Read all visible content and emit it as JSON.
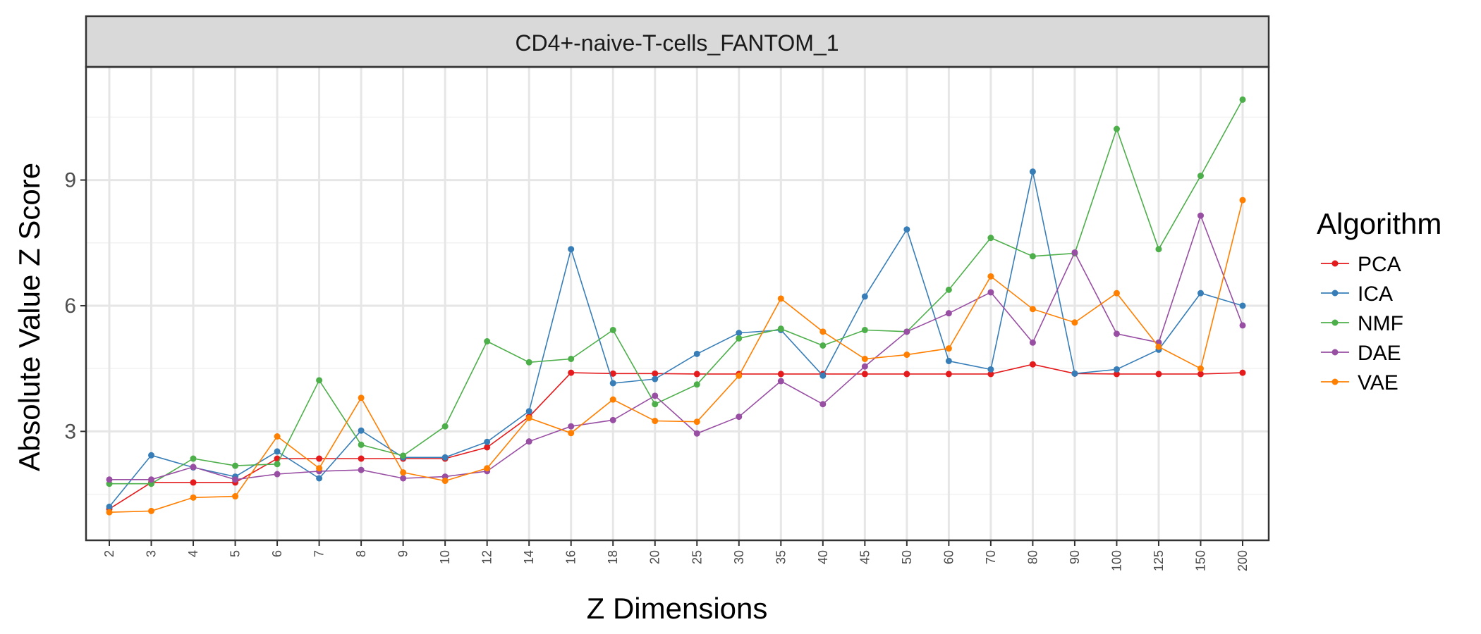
{
  "chart_data": {
    "type": "line",
    "facet_title": "CD4+-naive-T-cells_FANTOM_1",
    "xlabel": "Z Dimensions",
    "ylabel": "Absolute Value Z Score",
    "legend_title": "Algorithm",
    "legend_position": "right",
    "grid": true,
    "ylim": [
      0.4,
      11.7
    ],
    "yticks": [
      3,
      6,
      9
    ],
    "categories": [
      "2",
      "3",
      "4",
      "5",
      "6",
      "7",
      "8",
      "9",
      "10",
      "12",
      "14",
      "16",
      "18",
      "20",
      "25",
      "30",
      "35",
      "40",
      "45",
      "50",
      "60",
      "70",
      "80",
      "90",
      "100",
      "125",
      "150",
      "200"
    ],
    "series": [
      {
        "name": "PCA",
        "color": "#E41A1C",
        "values": [
          1.15,
          1.78,
          1.78,
          1.78,
          2.35,
          2.35,
          2.35,
          2.35,
          2.35,
          2.62,
          3.35,
          4.4,
          4.38,
          4.38,
          4.37,
          4.37,
          4.37,
          4.37,
          4.37,
          4.37,
          4.37,
          4.37,
          4.6,
          4.38,
          4.37,
          4.37,
          4.37,
          4.4
        ]
      },
      {
        "name": "ICA",
        "color": "#377EB8",
        "values": [
          1.2,
          2.43,
          2.14,
          1.92,
          2.52,
          1.88,
          3.02,
          2.38,
          2.38,
          2.75,
          3.48,
          7.35,
          4.15,
          4.25,
          4.85,
          5.35,
          5.42,
          4.33,
          6.22,
          7.82,
          4.68,
          4.48,
          9.2,
          4.38,
          4.48,
          4.95,
          6.3,
          6.0
        ]
      },
      {
        "name": "NMF",
        "color": "#4DAF4A",
        "values": [
          1.75,
          1.75,
          2.35,
          2.18,
          2.22,
          4.22,
          2.68,
          2.42,
          3.12,
          5.15,
          4.65,
          4.73,
          5.42,
          3.65,
          4.12,
          5.22,
          5.45,
          5.05,
          5.42,
          5.38,
          6.38,
          7.62,
          7.18,
          7.25,
          10.22,
          7.35,
          9.1,
          10.92
        ]
      },
      {
        "name": "DAE",
        "color": "#984EA3",
        "values": [
          1.85,
          1.85,
          2.15,
          1.85,
          1.98,
          2.05,
          2.08,
          1.88,
          1.92,
          2.05,
          2.76,
          3.12,
          3.27,
          3.85,
          2.95,
          3.35,
          4.2,
          3.65,
          4.55,
          5.38,
          5.82,
          6.32,
          5.12,
          7.27,
          5.33,
          5.12,
          8.15,
          5.53
        ]
      },
      {
        "name": "VAE",
        "color": "#FF7F00",
        "values": [
          1.07,
          1.1,
          1.42,
          1.45,
          2.88,
          2.12,
          3.8,
          2.02,
          1.82,
          2.12,
          3.32,
          2.96,
          3.76,
          3.25,
          3.23,
          4.33,
          6.17,
          5.38,
          4.73,
          4.83,
          4.98,
          6.7,
          5.92,
          5.6,
          6.3,
          5.02,
          4.5,
          8.52
        ]
      }
    ]
  }
}
